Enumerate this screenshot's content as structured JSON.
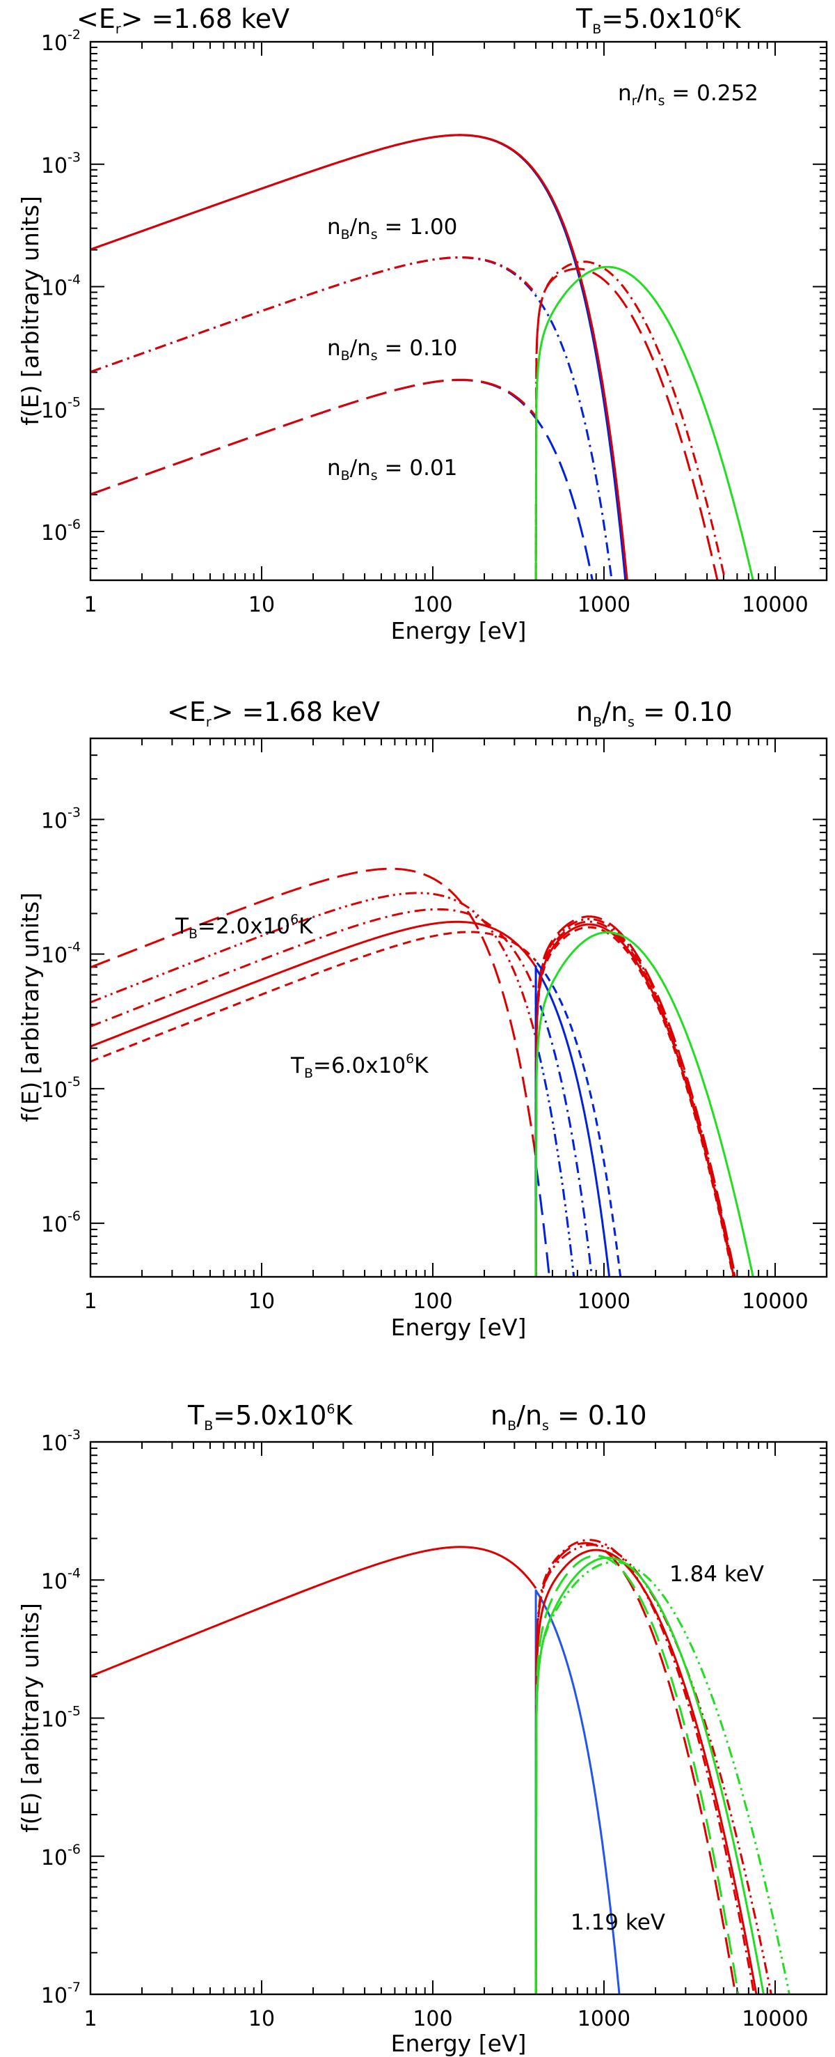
{
  "colors": {
    "red": "#dd0000",
    "blue": "#0022dd",
    "green": "#22dd22",
    "thinblue": "#2255ee"
  },
  "chart_data": [
    {
      "type": "line",
      "title_left": "<E",
      "title_left_sub": "r",
      "title_left_val": "> =1.68 keV",
      "title_right": "T",
      "title_right_sub": "B",
      "title_right_val": "=5.0x10",
      "title_right_exp": "6",
      "title_right_unit": "K",
      "xlabel": "Energy [eV]",
      "ylabel": "f(E)  [arbitrary units]",
      "xlim": [
        1,
        20000
      ],
      "ylim": [
        4e-07,
        0.01
      ],
      "xticks": [
        "1",
        "10",
        "100",
        "1000",
        "10000"
      ],
      "yticks": [
        {
          "mant": "10",
          "exp": "-6"
        },
        {
          "mant": "10",
          "exp": "-5"
        },
        {
          "mant": "10",
          "exp": "-4"
        },
        {
          "mant": "10",
          "exp": "-3"
        },
        {
          "mant": "10",
          "exp": "-2"
        }
      ],
      "annotations": [
        {
          "n": "n",
          "sub": "r",
          "d": "/n",
          "dsub": "s",
          "val": " = 0.252"
        },
        {
          "n": "n",
          "sub": "B",
          "d": "/n",
          "dsub": "s",
          "val": " = 1.00"
        },
        {
          "n": "n",
          "sub": "B",
          "d": "/n",
          "dsub": "s",
          "val": " = 0.10"
        },
        {
          "n": "n",
          "sub": "B",
          "d": "/n",
          "dsub": "s",
          "val": " = 0.01"
        }
      ],
      "series": [
        {
          "name": "total nB/ns=1.00",
          "color": "red",
          "dash": "solid"
        },
        {
          "name": "thermal nB/ns=1.00",
          "color": "blue",
          "dash": "solid"
        },
        {
          "name": "total nB/ns=0.10",
          "color": "red",
          "dash": "dashdot"
        },
        {
          "name": "thermal nB/ns=0.10",
          "color": "blue",
          "dash": "dashdot"
        },
        {
          "name": "total nB/ns=0.01",
          "color": "red",
          "dash": "longdash"
        },
        {
          "name": "thermal nB/ns=0.01",
          "color": "blue",
          "dash": "longdash"
        },
        {
          "name": "nonthermal",
          "color": "green",
          "dash": "solid"
        }
      ]
    },
    {
      "type": "line",
      "title_left": "<E",
      "title_left_sub": "r",
      "title_left_val": "> =1.68 keV",
      "title_right": "n",
      "title_right_sub": "B",
      "title_right_d": "/n",
      "title_right_dsub": "s",
      "title_right_val": " = 0.10",
      "xlabel": "Energy [eV]",
      "ylabel": "f(E)  [arbitrary units]",
      "xlim": [
        1,
        20000
      ],
      "ylim": [
        4e-07,
        0.004
      ],
      "xticks": [
        "1",
        "10",
        "100",
        "1000",
        "10000"
      ],
      "yticks": [
        {
          "mant": "10",
          "exp": "-6"
        },
        {
          "mant": "10",
          "exp": "-5"
        },
        {
          "mant": "10",
          "exp": "-4"
        },
        {
          "mant": "10",
          "exp": "-3"
        }
      ],
      "annotations": [
        {
          "t": "T",
          "sub": "B",
          "val": "=2.0x10",
          "exp": "6",
          "unit": "K"
        },
        {
          "t": "T",
          "sub": "B",
          "val": "=6.0x10",
          "exp": "6",
          "unit": "K"
        }
      ],
      "series": [
        {
          "name": "TB=2.0e6K",
          "color": "red",
          "dash": "longdash"
        },
        {
          "name": "TB=3.0e6K",
          "color": "red",
          "dash": "dashdotdot"
        },
        {
          "name": "TB=4.0e6K",
          "color": "red",
          "dash": "dashdot"
        },
        {
          "name": "TB=5.0e6K",
          "color": "red",
          "dash": "solid"
        },
        {
          "name": "TB=6.0e6K",
          "color": "red",
          "dash": "dash"
        },
        {
          "name": "nonthermal",
          "color": "green",
          "dash": "solid"
        }
      ]
    },
    {
      "type": "line",
      "title_left": "T",
      "title_left_sub": "B",
      "title_left_val": "=5.0x10",
      "title_left_exp": "6",
      "title_left_unit": "K",
      "title_right": "n",
      "title_right_sub": "B",
      "title_right_d": "/n",
      "title_right_dsub": "s",
      "title_right_val": " = 0.10",
      "xlabel": "Energy [eV]",
      "ylabel": "f(E)  [arbitrary units]",
      "xlim": [
        1,
        20000
      ],
      "ylim": [
        1e-07,
        0.001
      ],
      "xticks": [
        "1",
        "10",
        "100",
        "1000",
        "10000"
      ],
      "yticks": [
        {
          "mant": "10",
          "exp": "-7"
        },
        {
          "mant": "10",
          "exp": "-6"
        },
        {
          "mant": "10",
          "exp": "-5"
        },
        {
          "mant": "10",
          "exp": "-4"
        },
        {
          "mant": "10",
          "exp": "-3"
        }
      ],
      "annotations": [
        {
          "text": "1.84 keV"
        },
        {
          "text": "1.19 keV"
        }
      ],
      "series": [
        {
          "name": "<Er>=1.19 keV",
          "color": "red",
          "dash": "solid"
        },
        {
          "name": "<Er>=1.40 keV",
          "color": "red",
          "dash": "longdash"
        },
        {
          "name": "<Er>=1.68 keV",
          "color": "red",
          "dash": "dashdot"
        },
        {
          "name": "<Er>=1.84 keV",
          "color": "red",
          "dash": "dashdotdot"
        },
        {
          "name": "thermal",
          "color": "thinblue",
          "dash": "solid"
        },
        {
          "name": "nonthermal",
          "color": "green",
          "dash": "mixed"
        }
      ]
    }
  ]
}
